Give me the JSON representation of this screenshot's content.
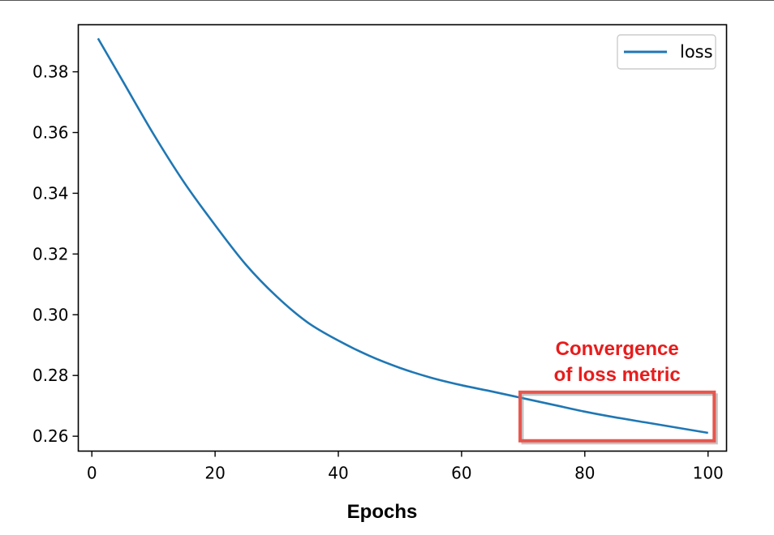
{
  "chart_data": {
    "type": "line",
    "title": "",
    "xlabel": "Epochs",
    "ylabel": "",
    "xlim": [
      -2.2,
      103
    ],
    "ylim": [
      0.2551,
      0.3955
    ],
    "x_ticks": [
      0,
      20,
      40,
      60,
      80,
      100
    ],
    "x_tick_labels": [
      "0",
      "20",
      "40",
      "60",
      "80",
      "100"
    ],
    "y_ticks": [
      0.26,
      0.28,
      0.3,
      0.32,
      0.34,
      0.36,
      0.38
    ],
    "y_tick_labels": [
      "0.26",
      "0.28",
      "0.30",
      "0.32",
      "0.34",
      "0.36",
      "0.38"
    ],
    "grid": false,
    "legend_position": "top-right",
    "series": [
      {
        "name": "loss",
        "color": "#1f77b4",
        "x": [
          1,
          5,
          10,
          15,
          20,
          25,
          30,
          35,
          40,
          45,
          50,
          55,
          60,
          65,
          70,
          75,
          80,
          85,
          90,
          95,
          100
        ],
        "y": [
          0.391,
          0.377,
          0.3595,
          0.3435,
          0.3295,
          0.3165,
          0.306,
          0.2975,
          0.2915,
          0.2865,
          0.2825,
          0.2793,
          0.2768,
          0.2747,
          0.2725,
          0.2703,
          0.2681,
          0.2662,
          0.2645,
          0.2628,
          0.2611
        ]
      }
    ],
    "annotations": [
      {
        "text_lines": [
          "Convergence",
          "of loss metric"
        ],
        "color": "#e81c1c",
        "box_x_range": [
          69.5,
          101
        ],
        "box_y_range": [
          0.2585,
          0.2745
        ],
        "box_color": "#e8554d"
      }
    ]
  }
}
